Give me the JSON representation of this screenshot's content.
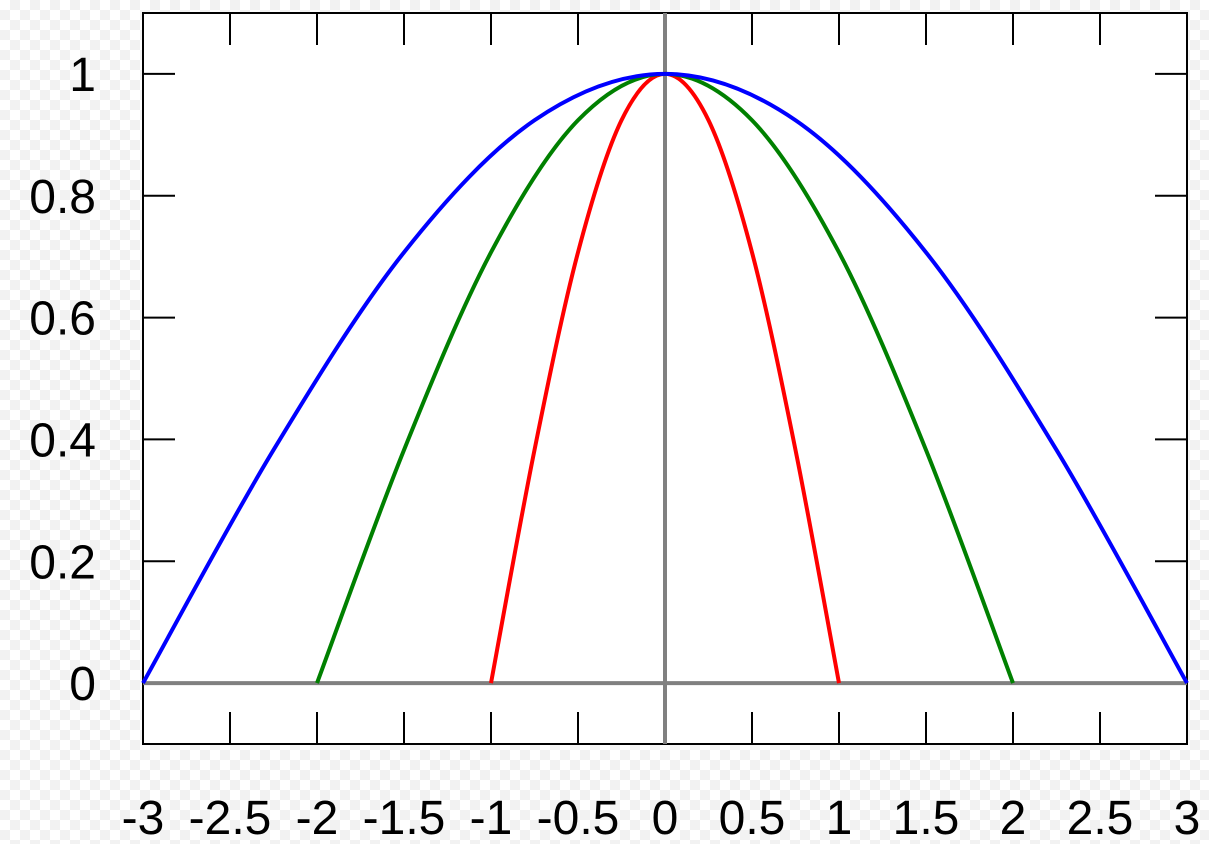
{
  "chart_data": {
    "type": "line",
    "title": "",
    "xlabel": "",
    "ylabel": "",
    "xlim": [
      -3,
      3
    ],
    "ylim": [
      -0.1,
      1.1
    ],
    "grid": false,
    "legend": "none",
    "x_ticks": [
      "-3",
      "-2.5",
      "-2",
      "-1.5",
      "-1",
      "-0.5",
      "0",
      "0.5",
      "1",
      "1.5",
      "2",
      "2.5",
      "3"
    ],
    "y_ticks": [
      "0",
      "0.2",
      "0.4",
      "0.6",
      "0.8",
      "1"
    ],
    "series": [
      {
        "color": "#ff0000",
        "x": [
          -1,
          -0.75,
          -0.5,
          -0.25,
          0,
          0.25,
          0.5,
          0.75,
          1
        ],
        "y": [
          0,
          0.3827,
          0.7071,
          0.9239,
          1,
          0.9239,
          0.7071,
          0.3827,
          0
        ]
      },
      {
        "color": "#008000",
        "x": [
          -2,
          -1.5,
          -1,
          -0.5,
          0,
          0.5,
          1,
          1.5,
          2
        ],
        "y": [
          0,
          0.3827,
          0.7071,
          0.9239,
          1,
          0.9239,
          0.7071,
          0.3827,
          0
        ]
      },
      {
        "color": "#0000ff",
        "x": [
          -3,
          -2.25,
          -1.5,
          -0.75,
          0,
          0.75,
          1.5,
          2.25,
          3
        ],
        "y": [
          0,
          0.3827,
          0.7071,
          0.9239,
          1,
          0.9239,
          0.7071,
          0.3827,
          0
        ]
      }
    ],
    "colors": {
      "axis": "#808080",
      "frame": "#000000"
    }
  }
}
